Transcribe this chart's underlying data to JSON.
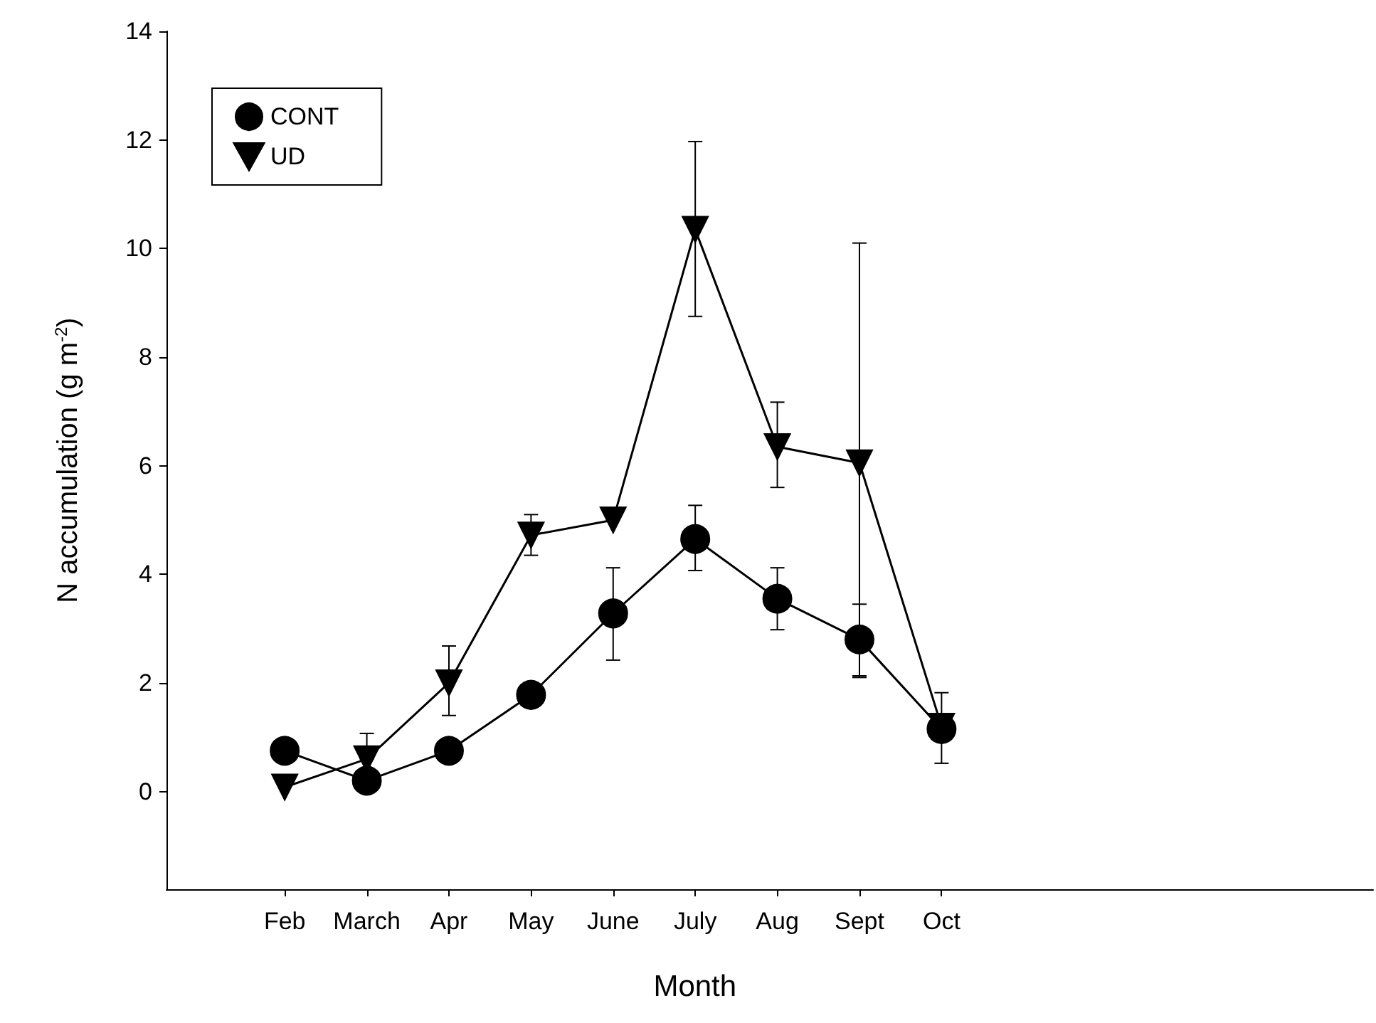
{
  "chart_data": {
    "type": "line",
    "xlabel": "Month",
    "ylabel": "N accumulation (g m$^{-2}$)",
    "categories": [
      "Feb",
      "March",
      "Apr",
      "May",
      "June",
      "July",
      "Aug",
      "Sept",
      "Oct"
    ],
    "series": [
      {
        "name": "CONT",
        "color": "#000000",
        "marker": "circle",
        "values": [
          0.75,
          0.2,
          0.75,
          1.78,
          3.28,
          4.65,
          3.55,
          2.8,
          1.15
        ],
        "errors": [
          null,
          null,
          null,
          null,
          [
            2.42,
            4.12
          ],
          [
            4.07,
            5.27
          ],
          [
            2.98,
            4.12
          ],
          [
            2.13,
            3.45
          ],
          [
            0.52,
            1.82
          ]
        ]
      },
      {
        "name": "UD",
        "color": "#000000",
        "marker": "triangle-down",
        "values": [
          0.08,
          0.6,
          2.0,
          4.72,
          5.0,
          10.35,
          6.35,
          6.05,
          1.2
        ],
        "errors": [
          null,
          [
            0.6,
            1.07
          ],
          [
            1.4,
            2.68
          ],
          [
            4.35,
            5.1
          ],
          null,
          [
            8.75,
            11.97
          ],
          [
            5.6,
            7.17
          ],
          [
            2.1,
            10.1
          ],
          null
        ]
      }
    ],
    "ylim": [
      -1.8,
      14
    ],
    "yticks": [
      0,
      2,
      4,
      6,
      8,
      10,
      12,
      14
    ],
    "grid": false,
    "legend": "top left",
    "line_style": "solid"
  }
}
